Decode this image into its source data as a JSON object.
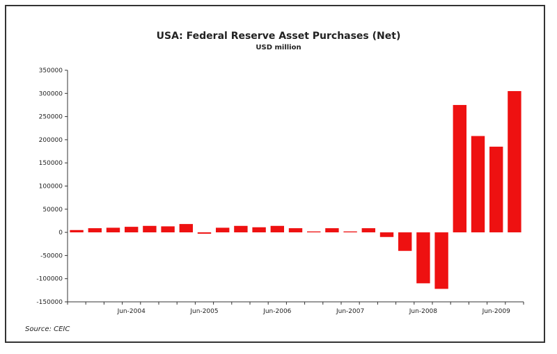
{
  "chart_data": {
    "type": "bar",
    "title": "USA: Federal Reserve Asset Purchases (Net)",
    "subtitle": "USD million",
    "source": "Source: CEIC",
    "bar_color": "#ee1111",
    "ylim": [
      -150000,
      350000
    ],
    "y_ticks": [
      350000,
      300000,
      250000,
      200000,
      150000,
      100000,
      50000,
      0,
      -50000,
      -100000,
      -150000
    ],
    "y_tick_labels": [
      "350000",
      "300000",
      "250000",
      "200000",
      "150000",
      "100000",
      "50000",
      "0",
      "-50000",
      "-100000",
      "-150000"
    ],
    "x_labels": [
      {
        "label": "Jun-2004",
        "index": 3.5
      },
      {
        "label": "Jun-2005",
        "index": 7.5
      },
      {
        "label": "Jun-2006",
        "index": 11.5
      },
      {
        "label": "Jun-2007",
        "index": 15.5
      },
      {
        "label": "Jun-2008",
        "index": 19.5
      },
      {
        "label": "Jun-2009",
        "index": 23.5
      }
    ],
    "values": [
      5000,
      9000,
      10000,
      12000,
      14000,
      13000,
      18000,
      -3000,
      10000,
      14000,
      11000,
      14000,
      9000,
      2000,
      9000,
      2000,
      9000,
      -10000,
      -40000,
      -110000,
      -122000,
      275000,
      208000,
      185000,
      305000
    ]
  }
}
